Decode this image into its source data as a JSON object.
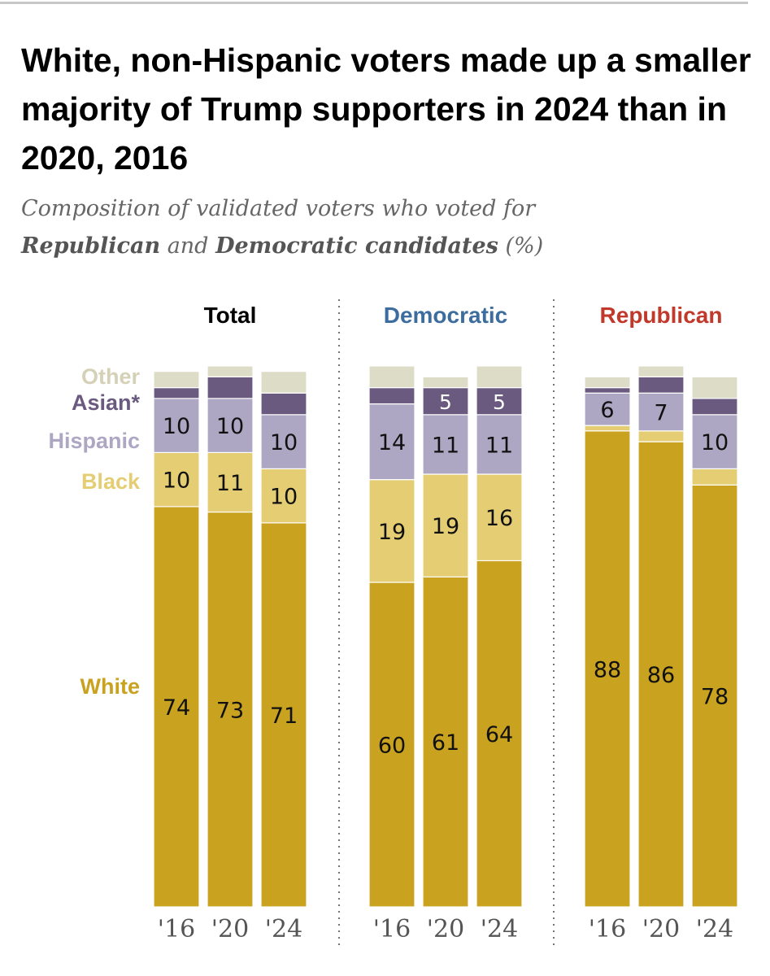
{
  "title": "White, non-Hispanic voters made up a smaller majority of Trump supporters in 2024 than in 2020, 2016",
  "subtitle": {
    "part1": "Composition of validated voters who voted for",
    "bold1": "Republican",
    "part2": "and",
    "bold2": "Democratic candidates",
    "part3": "(%)"
  },
  "colors": {
    "White": "#c9a21f",
    "Black": "#e4cd72",
    "Hispanic": "#aea7c3",
    "Asian": "#6a5a80",
    "Other": "#dddcc6",
    "Democratic": "#3d6d9e",
    "Republican": "#c0392b",
    "Total": "#000000"
  },
  "legend": {
    "Other": "Other",
    "Asian": "Asian*",
    "Hispanic": "Hispanic",
    "Black": "Black",
    "White": "White"
  },
  "chart_data": {
    "type": "bar",
    "stacked": true,
    "ylim": [
      0,
      100
    ],
    "categories": [
      "'16",
      "'20",
      "'24"
    ],
    "segment_order": [
      "White",
      "Black",
      "Hispanic",
      "Asian",
      "Other"
    ],
    "groups": [
      {
        "name": "Total",
        "bars": [
          {
            "x": "'16",
            "White": 74,
            "Black": 10,
            "Hispanic": 10,
            "Asian": 2,
            "Other": 3
          },
          {
            "x": "'20",
            "White": 73,
            "Black": 11,
            "Hispanic": 10,
            "Asian": 4,
            "Other": 2
          },
          {
            "x": "'24",
            "White": 71,
            "Black": 10,
            "Hispanic": 10,
            "Asian": 4,
            "Other": 4
          }
        ]
      },
      {
        "name": "Democratic",
        "bars": [
          {
            "x": "'16",
            "White": 60,
            "Black": 19,
            "Hispanic": 14,
            "Asian": 3,
            "Other": 4
          },
          {
            "x": "'20",
            "White": 61,
            "Black": 19,
            "Hispanic": 11,
            "Asian": 5,
            "Other": 2
          },
          {
            "x": "'24",
            "White": 64,
            "Black": 16,
            "Hispanic": 11,
            "Asian": 5,
            "Other": 4
          }
        ]
      },
      {
        "name": "Republican",
        "bars": [
          {
            "x": "'16",
            "White": 88,
            "Black": 1,
            "Hispanic": 6,
            "Asian": 1,
            "Other": 2
          },
          {
            "x": "'20",
            "White": 86,
            "Black": 2,
            "Hispanic": 7,
            "Asian": 3,
            "Other": 2
          },
          {
            "x": "'24",
            "White": 78,
            "Black": 3,
            "Hispanic": 10,
            "Asian": 3,
            "Other": 4
          }
        ]
      }
    ],
    "labeled_values": {
      "White": true,
      "Black": true,
      "Hispanic": true,
      "Asian": [
        "Democratic:'20",
        "Democratic:'24"
      ]
    },
    "label_min": 5
  }
}
